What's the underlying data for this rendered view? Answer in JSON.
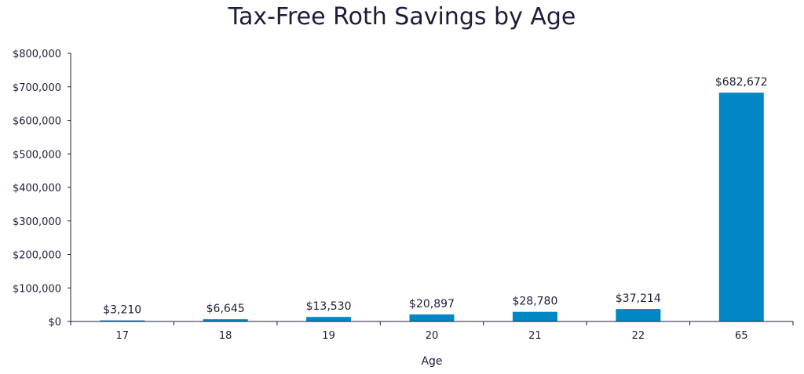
{
  "chart_data": {
    "type": "bar",
    "title": "Tax-Free Roth Savings by Age",
    "xlabel": "Age",
    "ylabel": "",
    "categories": [
      "17",
      "18",
      "19",
      "20",
      "21",
      "22",
      "65"
    ],
    "values": [
      3210,
      6645,
      13530,
      20897,
      28780,
      37214,
      682672
    ],
    "value_labels": [
      "$3,210",
      "$6,645",
      "$13,530",
      "$20,897",
      "$28,780",
      "$37,214",
      "$682,672"
    ],
    "ylim": [
      0,
      800000
    ],
    "yticks": [
      0,
      100000,
      200000,
      300000,
      400000,
      500000,
      600000,
      700000,
      800000
    ],
    "ytick_labels": [
      "$0",
      "$100,000",
      "$200,000",
      "$300,000",
      "$400,000",
      "$500,000",
      "$600,000",
      "$700,000",
      "$800,000"
    ],
    "grid": false,
    "legend": "none",
    "bar_color": "#0087c4",
    "axis_color": "#1b1d3a"
  }
}
